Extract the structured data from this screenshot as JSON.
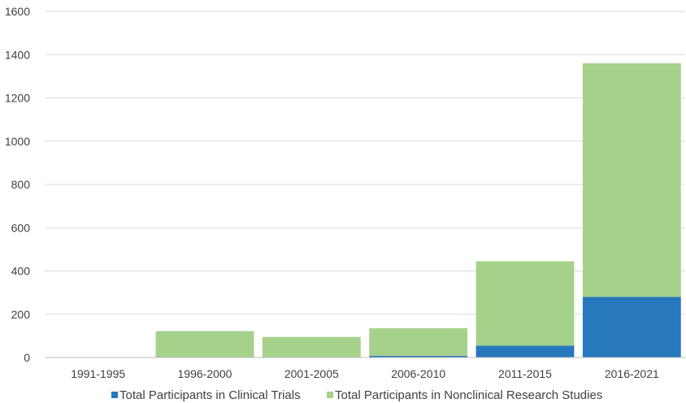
{
  "chart_data": {
    "type": "bar",
    "stacked": true,
    "title": "",
    "xlabel": "",
    "ylabel": "",
    "categories": [
      "1991-1995",
      "1996-2000",
      "2001-2005",
      "2006-2010",
      "2011-2015",
      "2016-2021"
    ],
    "series": [
      {
        "name": "Total Participants in Clinical Trials",
        "color": "#2878BE",
        "values": [
          0,
          0,
          0,
          8,
          55,
          280
        ]
      },
      {
        "name": "Total Participants in Nonclinical Research Studies",
        "color": "#A6D18A",
        "values": [
          0,
          122,
          95,
          127,
          390,
          1080
        ]
      }
    ],
    "ylim": [
      0,
      1600
    ],
    "yticks": [
      0,
      200,
      400,
      600,
      800,
      1000,
      1200,
      1400,
      1600
    ],
    "grid": true,
    "legend_position": "bottom"
  }
}
